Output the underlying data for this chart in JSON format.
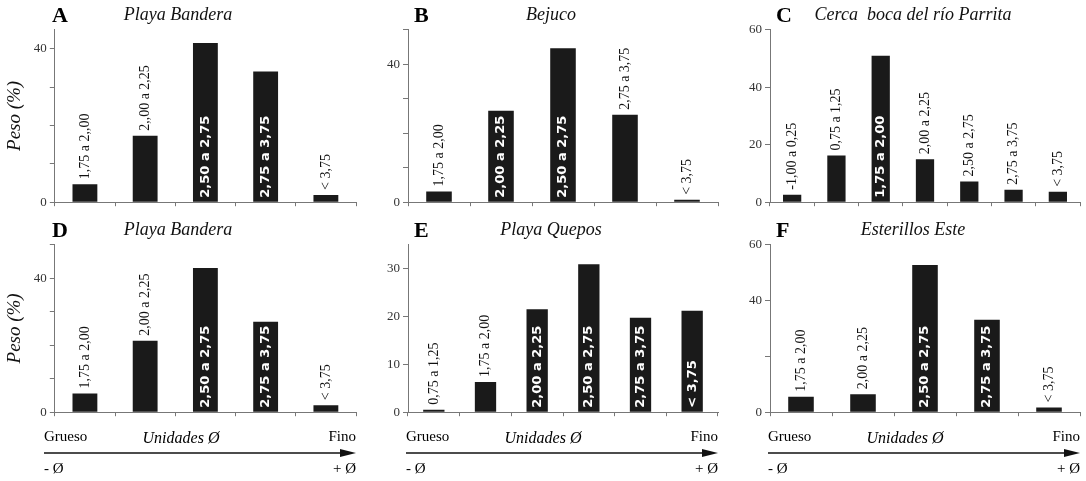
{
  "chart_data": [
    {
      "type": "bar",
      "title": "Playa Bandera",
      "ylabel": "Peso (%)",
      "annotations": [
        "A"
      ],
      "categories": [
        "1,75 a 2,,00",
        "2,,00 a 2,25",
        "2,50 a 2,75",
        "2,75 a 3,75",
        "< 3,75"
      ],
      "values": [
        4.7,
        17.3,
        41.5,
        34.1,
        1.9
      ],
      "color": "#1a1a1a",
      "ylim": [
        0,
        45
      ],
      "yticks": [
        0,
        {
          "value": 10,
          "label": null
        },
        {
          "value": 20,
          "label": null
        },
        {
          "value": 30,
          "label": null
        },
        40
      ]
    },
    {
      "type": "bar",
      "title": "Bejuco",
      "annotations": [
        "B"
      ],
      "categories": [
        "1,75 a 2,00",
        "2,00 a 2,25",
        "2,50 a 2,75",
        "2,75 a 3,75",
        "< 3,75"
      ],
      "values": [
        3.1,
        26.5,
        44.6,
        25.3,
        0.7
      ],
      "color": "#1a1a1a",
      "ylim": [
        0,
        50
      ],
      "yticks": [
        0,
        {
          "value": 10,
          "label": null
        },
        {
          "value": 20,
          "label": null
        },
        {
          "value": 30,
          "label": null
        },
        40,
        {
          "value": 50,
          "label": null
        }
      ]
    },
    {
      "type": "bar",
      "title": "Cerca  boca del río Parrita",
      "annotations": [
        "C"
      ],
      "categories": [
        "-1,00 a 0,25",
        "0,75 a 1,25",
        "1,75 a 2,00",
        "2,00 a 2,25",
        "2,50 a 2,75",
        "2,75 a 3,75",
        "< 3,75"
      ],
      "values": [
        2.6,
        16.2,
        50.9,
        14.9,
        7.2,
        4.3,
        3.6
      ],
      "color": "#1a1a1a",
      "ylim": [
        0,
        60
      ],
      "yticks": [
        0,
        20,
        40,
        60
      ]
    },
    {
      "type": "bar",
      "title": "Playa Bandera",
      "ylabel": "Peso (%)",
      "xlabel": "Unidades Ø",
      "annotations": [
        "D",
        "Grueso",
        "Fino",
        "- Ø",
        "+ Ø"
      ],
      "categories": [
        "1,75 a 2,00",
        "2,00 a 2,25",
        "2,50 a 2,75",
        "2,75 a 3,75",
        "< 3,75"
      ],
      "values": [
        5.6,
        21.3,
        43.0,
        27.0,
        2.1
      ],
      "color": "#1a1a1a",
      "ylim": [
        0,
        50
      ],
      "yticks": [
        0,
        {
          "value": 10,
          "label": null
        },
        {
          "value": 20,
          "label": null
        },
        {
          "value": 30,
          "label": null
        },
        40,
        {
          "value": 50,
          "label": null
        }
      ]
    },
    {
      "type": "bar",
      "title": "Playa Quepos",
      "xlabel": "Unidades Ø",
      "annotations": [
        "E",
        "Grueso",
        "Fino",
        "- Ø",
        "+ Ø"
      ],
      "categories": [
        "0,75 a 1,25",
        "1,75 a 2,00",
        "2,00 a 2,25",
        "2,50 a 2,75",
        "2,75 a 3,75",
        "< 3,75"
      ],
      "values": [
        0.5,
        6.3,
        21.5,
        30.9,
        19.7,
        21.2
      ],
      "color": "#1a1a1a",
      "ylim": [
        0,
        35
      ],
      "yticks": [
        0,
        10,
        20,
        30
      ]
    },
    {
      "type": "bar",
      "title": "Esterillos Este",
      "xlabel": "Unidades Ø",
      "annotations": [
        "F",
        "Grueso",
        "Fino",
        "- Ø",
        "+ Ø"
      ],
      "categories": [
        "1,75 a 2,00",
        "2,00 a 2,25",
        "2,50 a 2,75",
        "2,75 a 3,75",
        "< 3,75"
      ],
      "values": [
        5.5,
        6.4,
        52.7,
        33.1,
        1.7
      ],
      "color": "#1a1a1a",
      "ylim": [
        0,
        60
      ],
      "yticks": [
        0,
        {
          "value": 20,
          "label": null
        },
        40,
        60
      ]
    }
  ]
}
